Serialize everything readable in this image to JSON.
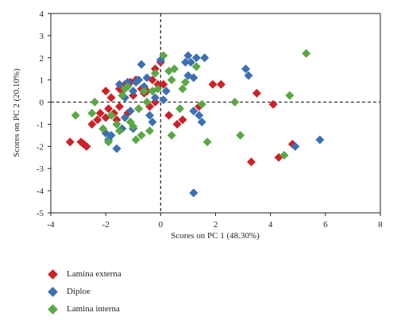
{
  "chart_data": {
    "type": "scatter",
    "title": "",
    "xlabel": "Scores on PC 1 (48.30%)",
    "ylabel": "Scores on PC 2 (20.10%)",
    "xlim": [
      -4,
      8
    ],
    "ylim": [
      -5,
      4
    ],
    "xticks": [
      -4,
      -2,
      0,
      2,
      4,
      6,
      8
    ],
    "yticks": [
      -5,
      -4,
      -3,
      -2,
      -1,
      0,
      1,
      2,
      3,
      4
    ],
    "reference_lines": {
      "x": 0,
      "y": 0,
      "style": "dashed"
    },
    "legend_position": "bottom-left",
    "series": [
      {
        "name": "Lamina externa",
        "color": "#cc2127",
        "points": [
          [
            -3.3,
            -1.8
          ],
          [
            -2.9,
            -1.8
          ],
          [
            -2.8,
            -1.9
          ],
          [
            -2.7,
            -2.0
          ],
          [
            -2.5,
            -1.0
          ],
          [
            -2.3,
            -0.8
          ],
          [
            -2.2,
            -0.5
          ],
          [
            -2.0,
            -0.7
          ],
          [
            -2.0,
            0.5
          ],
          [
            -1.9,
            -0.3
          ],
          [
            -1.8,
            0.2
          ],
          [
            -1.7,
            -0.5
          ],
          [
            -1.6,
            -0.8
          ],
          [
            -1.5,
            -0.2
          ],
          [
            -1.5,
            0.6
          ],
          [
            -1.4,
            0.5
          ],
          [
            -1.3,
            0.8
          ],
          [
            -1.2,
            -0.5
          ],
          [
            -1.1,
            0.9
          ],
          [
            -1.0,
            0.3
          ],
          [
            -0.9,
            1.0
          ],
          [
            -0.8,
            -0.3
          ],
          [
            -0.7,
            0.6
          ],
          [
            -0.6,
            0.4
          ],
          [
            -0.5,
            0.5
          ],
          [
            -0.4,
            -0.2
          ],
          [
            -0.3,
            1.0
          ],
          [
            -0.2,
            1.5
          ],
          [
            -0.1,
            0.8
          ],
          [
            0.0,
            1.8
          ],
          [
            -0.2,
            0.0
          ],
          [
            0.1,
            0.8
          ],
          [
            0.6,
            -1.0
          ],
          [
            0.8,
            -0.8
          ],
          [
            0.3,
            -0.6
          ],
          [
            1.4,
            -0.2
          ],
          [
            1.9,
            0.8
          ],
          [
            2.2,
            0.8
          ],
          [
            3.5,
            0.4
          ],
          [
            4.1,
            -0.1
          ],
          [
            3.3,
            -2.7
          ],
          [
            4.3,
            -2.5
          ],
          [
            4.8,
            -1.9
          ]
        ]
      },
      {
        "name": "Diploe",
        "color": "#3d6fb3",
        "points": [
          [
            -2.0,
            -1.4
          ],
          [
            -1.9,
            -1.7
          ],
          [
            -1.8,
            -1.5
          ],
          [
            -1.6,
            -2.1
          ],
          [
            -1.5,
            0.8
          ],
          [
            -1.4,
            -1.2
          ],
          [
            -1.3,
            -0.7
          ],
          [
            -1.3,
            0.2
          ],
          [
            -1.2,
            0.9
          ],
          [
            -1.1,
            -0.4
          ],
          [
            -1.0,
            0.5
          ],
          [
            -1.0,
            -1.2
          ],
          [
            -0.9,
            0.9
          ],
          [
            -0.8,
            1.0
          ],
          [
            -0.7,
            1.7
          ],
          [
            -0.6,
            0.7
          ],
          [
            -0.5,
            1.1
          ],
          [
            -0.4,
            -0.6
          ],
          [
            -0.3,
            -0.9
          ],
          [
            -0.2,
            0.2
          ],
          [
            0.0,
            1.9
          ],
          [
            0.1,
            0.1
          ],
          [
            0.2,
            0.5
          ],
          [
            0.9,
            1.8
          ],
          [
            1.0,
            2.1
          ],
          [
            1.1,
            1.8
          ],
          [
            1.2,
            1.1
          ],
          [
            1.3,
            2.0
          ],
          [
            1.0,
            1.2
          ],
          [
            1.6,
            2.0
          ],
          [
            1.2,
            -0.4
          ],
          [
            1.4,
            -0.6
          ],
          [
            1.5,
            -0.9
          ],
          [
            3.1,
            1.5
          ],
          [
            3.2,
            1.2
          ],
          [
            4.9,
            -2.0
          ],
          [
            5.8,
            -1.7
          ],
          [
            1.2,
            -4.1
          ]
        ]
      },
      {
        "name": "Lamina interna",
        "color": "#5aa845",
        "points": [
          [
            -3.1,
            -0.6
          ],
          [
            -2.5,
            -0.5
          ],
          [
            -2.4,
            0.0
          ],
          [
            -2.1,
            -1.2
          ],
          [
            -1.9,
            -1.8
          ],
          [
            -1.8,
            -0.6
          ],
          [
            -1.6,
            -1.0
          ],
          [
            -1.5,
            -1.3
          ],
          [
            -1.4,
            0.3
          ],
          [
            -1.3,
            0.6
          ],
          [
            -1.2,
            0.7
          ],
          [
            -1.1,
            -0.9
          ],
          [
            -1.0,
            -1.1
          ],
          [
            -0.9,
            -1.7
          ],
          [
            -0.8,
            -0.3
          ],
          [
            -0.7,
            -1.5
          ],
          [
            -0.6,
            0.5
          ],
          [
            -0.5,
            0.0
          ],
          [
            -0.4,
            -1.3
          ],
          [
            -0.3,
            0.5
          ],
          [
            -0.2,
            1.3
          ],
          [
            -0.1,
            0.6
          ],
          [
            0.1,
            2.1
          ],
          [
            0.3,
            1.4
          ],
          [
            0.4,
            1.0
          ],
          [
            0.5,
            1.5
          ],
          [
            0.7,
            -0.3
          ],
          [
            0.8,
            0.6
          ],
          [
            0.9,
            0.9
          ],
          [
            0.4,
            -1.5
          ],
          [
            1.3,
            1.6
          ],
          [
            1.5,
            -0.1
          ],
          [
            1.7,
            -1.8
          ],
          [
            2.7,
            0.0
          ],
          [
            2.9,
            -1.5
          ],
          [
            4.5,
            -2.4
          ],
          [
            4.7,
            0.3
          ],
          [
            5.3,
            2.2
          ]
        ]
      }
    ]
  }
}
